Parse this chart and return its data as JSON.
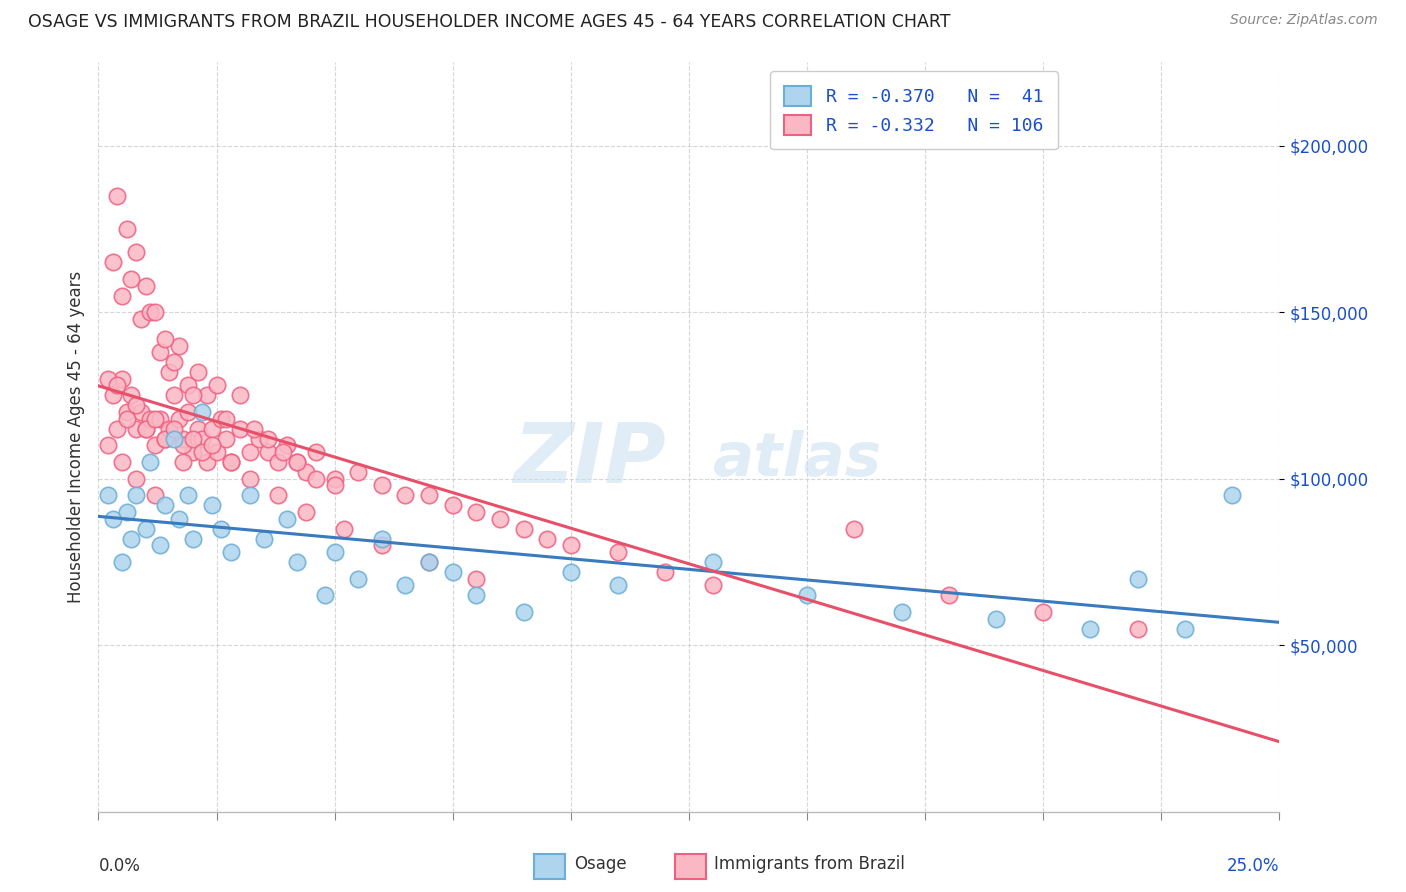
{
  "title": "OSAGE VS IMMIGRANTS FROM BRAZIL HOUSEHOLDER INCOME AGES 45 - 64 YEARS CORRELATION CHART",
  "source": "Source: ZipAtlas.com",
  "ylabel": "Householder Income Ages 45 - 64 years",
  "x_min": 0.0,
  "x_max": 0.25,
  "y_min": 0,
  "y_max": 225000,
  "y_ticks": [
    50000,
    100000,
    150000,
    200000
  ],
  "y_tick_labels": [
    "$50,000",
    "$100,000",
    "$150,000",
    "$200,000"
  ],
  "watermark_zip": "ZIP",
  "watermark_atlas": "atlas",
  "legend_r1": "R = -0.370",
  "legend_n1": "N =  41",
  "legend_r2": "R = -0.332",
  "legend_n2": "N = 106",
  "legend_label1": "Osage",
  "legend_label2": "Immigrants from Brazil",
  "color_osage_fill": "#aed4ee",
  "color_osage_edge": "#6baed6",
  "color_brazil_fill": "#f9b8c4",
  "color_brazil_edge": "#f06080",
  "color_line_osage": "#3a7bbf",
  "color_line_brazil": "#e8506a",
  "color_text_blue": "#1a4fcc",
  "color_text_dark": "#333333",
  "background_color": "#ffffff",
  "grid_color": "#cccccc",
  "osage_x": [
    0.002,
    0.003,
    0.005,
    0.006,
    0.007,
    0.008,
    0.01,
    0.011,
    0.013,
    0.014,
    0.016,
    0.017,
    0.019,
    0.02,
    0.022,
    0.024,
    0.026,
    0.028,
    0.032,
    0.035,
    0.04,
    0.042,
    0.048,
    0.05,
    0.055,
    0.06,
    0.065,
    0.07,
    0.075,
    0.08,
    0.09,
    0.1,
    0.11,
    0.13,
    0.15,
    0.17,
    0.19,
    0.21,
    0.22,
    0.23,
    0.24
  ],
  "osage_y": [
    95000,
    88000,
    75000,
    90000,
    82000,
    95000,
    85000,
    105000,
    80000,
    92000,
    112000,
    88000,
    95000,
    82000,
    120000,
    92000,
    85000,
    78000,
    95000,
    82000,
    88000,
    75000,
    65000,
    78000,
    70000,
    82000,
    68000,
    75000,
    72000,
    65000,
    60000,
    72000,
    68000,
    75000,
    65000,
    60000,
    58000,
    55000,
    70000,
    55000,
    95000
  ],
  "brazil_x": [
    0.002,
    0.003,
    0.004,
    0.005,
    0.006,
    0.007,
    0.008,
    0.009,
    0.01,
    0.011,
    0.012,
    0.013,
    0.014,
    0.015,
    0.016,
    0.017,
    0.018,
    0.019,
    0.02,
    0.021,
    0.022,
    0.023,
    0.024,
    0.025,
    0.026,
    0.027,
    0.028,
    0.03,
    0.032,
    0.034,
    0.036,
    0.038,
    0.04,
    0.042,
    0.044,
    0.046,
    0.05,
    0.055,
    0.06,
    0.065,
    0.07,
    0.075,
    0.08,
    0.085,
    0.09,
    0.095,
    0.1,
    0.11,
    0.12,
    0.13,
    0.003,
    0.005,
    0.007,
    0.009,
    0.011,
    0.013,
    0.015,
    0.017,
    0.019,
    0.021,
    0.023,
    0.025,
    0.027,
    0.03,
    0.033,
    0.036,
    0.039,
    0.042,
    0.046,
    0.05,
    0.002,
    0.004,
    0.006,
    0.008,
    0.01,
    0.012,
    0.014,
    0.016,
    0.018,
    0.02,
    0.022,
    0.024,
    0.028,
    0.032,
    0.038,
    0.044,
    0.052,
    0.06,
    0.07,
    0.08,
    0.004,
    0.006,
    0.008,
    0.01,
    0.012,
    0.014,
    0.016,
    0.02,
    0.16,
    0.18,
    0.2,
    0.22,
    0.005,
    0.008,
    0.012,
    0.018
  ],
  "brazil_y": [
    110000,
    125000,
    115000,
    130000,
    120000,
    125000,
    115000,
    120000,
    115000,
    118000,
    110000,
    118000,
    112000,
    115000,
    125000,
    118000,
    112000,
    120000,
    108000,
    115000,
    112000,
    105000,
    115000,
    108000,
    118000,
    112000,
    105000,
    115000,
    108000,
    112000,
    108000,
    105000,
    110000,
    105000,
    102000,
    108000,
    100000,
    102000,
    98000,
    95000,
    95000,
    92000,
    90000,
    88000,
    85000,
    82000,
    80000,
    78000,
    72000,
    68000,
    165000,
    155000,
    160000,
    148000,
    150000,
    138000,
    132000,
    140000,
    128000,
    132000,
    125000,
    128000,
    118000,
    125000,
    115000,
    112000,
    108000,
    105000,
    100000,
    98000,
    130000,
    128000,
    118000,
    122000,
    115000,
    118000,
    112000,
    115000,
    110000,
    112000,
    108000,
    110000,
    105000,
    100000,
    95000,
    90000,
    85000,
    80000,
    75000,
    70000,
    185000,
    175000,
    168000,
    158000,
    150000,
    142000,
    135000,
    125000,
    85000,
    65000,
    60000,
    55000,
    105000,
    100000,
    95000,
    105000
  ]
}
